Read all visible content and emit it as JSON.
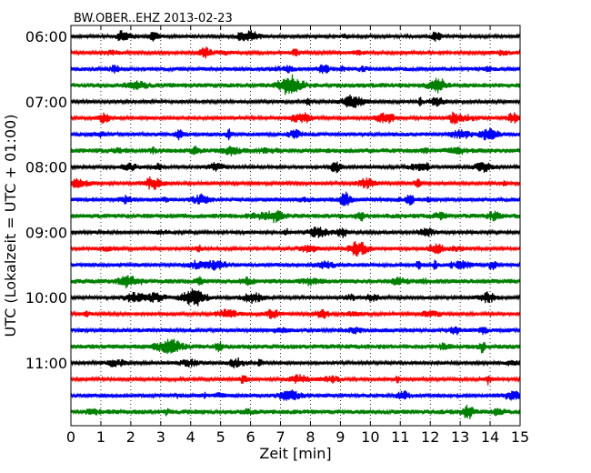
{
  "chart_data": {
    "type": "line",
    "title": "BW.OBER..EHZ 2013-02-23",
    "xlabel": "Zeit  [min]",
    "ylabel": "UTC (Lokalzeit = UTC + 01:00)",
    "xlim": [
      0,
      15
    ],
    "x_ticks": [
      0,
      1,
      2,
      3,
      4,
      5,
      6,
      7,
      8,
      9,
      10,
      11,
      12,
      13,
      14,
      15
    ],
    "y_tick_labels": [
      "06:00",
      "07:00",
      "08:00",
      "09:00",
      "10:00",
      "11:00"
    ],
    "grid": {
      "x": true,
      "style": "dotted"
    },
    "trace_colors": [
      "#000000",
      "#ff0000",
      "#0000ff",
      "#008000"
    ],
    "trace_count": 24,
    "trace_interval_minutes": 15,
    "first_trace_time": "06:00"
  }
}
